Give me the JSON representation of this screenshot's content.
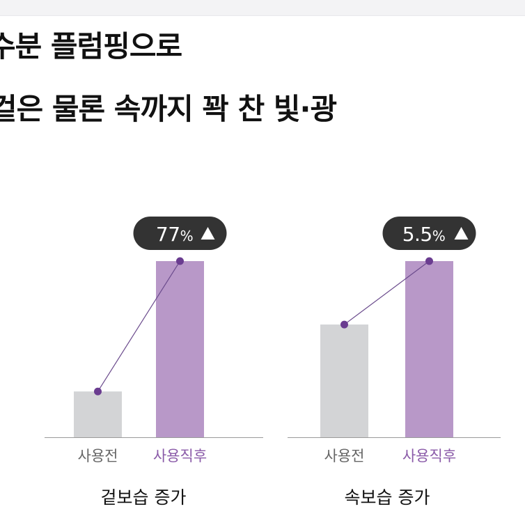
{
  "headline": {
    "line1": "수분 플럼핑으로",
    "line2": "겉은 물론 속까지 꽉 찬 빛·광"
  },
  "colors": {
    "bar_before": "#d3d4d6",
    "bar_after": "#b898c8",
    "line": "#6a4a8c",
    "point": "#6a3c90",
    "badge_bg": "#333333",
    "badge_text": "#ffffff",
    "tick_before": "#666666",
    "tick_after": "#8a5aa8"
  },
  "chart_data": [
    {
      "type": "bar",
      "title": "겉보습 증가",
      "categories": [
        "사용전",
        "사용직후"
      ],
      "values": [
        26,
        100
      ],
      "ylim": [
        0,
        100
      ],
      "annotation": {
        "value": "77",
        "unit": "%",
        "symbol": "▲"
      },
      "grid": false
    },
    {
      "type": "bar",
      "title": "속보습 증가",
      "categories": [
        "사용전",
        "사용직후"
      ],
      "values": [
        64,
        100
      ],
      "ylim": [
        0,
        100
      ],
      "annotation": {
        "value": "5.5",
        "unit": "%",
        "symbol": "▲"
      },
      "grid": false
    }
  ]
}
